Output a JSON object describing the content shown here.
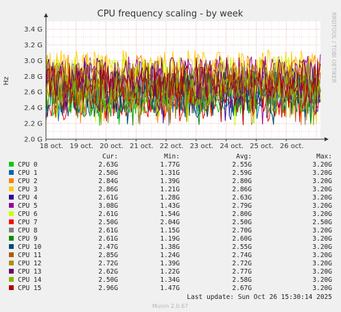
{
  "chart_data": {
    "type": "line",
    "title": "CPU frequency scaling - by week",
    "ylabel": "Hz",
    "xlabel": "",
    "ylim": [
      2.0,
      3.5
    ],
    "y_ticks": [
      2.0,
      2.2,
      2.4,
      2.6,
      2.8,
      3.0,
      3.2,
      3.4
    ],
    "y_tick_labels": [
      "2.0 G",
      "2.2 G",
      "2.4 G",
      "2.6 G",
      "2.8 G",
      "3.0 G",
      "3.2 G",
      "3.4 G"
    ],
    "x_tick_labels": [
      "18 oct.",
      "19 oct.",
      "20 oct.",
      "21 oct.",
      "22 oct.",
      "23 oct.",
      "24 oct.",
      "25 oct.",
      "26 oct."
    ],
    "grid": true,
    "legend_position": "bottom",
    "legend_headers": [
      "Cur:",
      "Min:",
      "Avg:",
      "Max:"
    ],
    "series": [
      {
        "name": "CPU 0",
        "color": "#00cc00",
        "cur": "2.63G",
        "min": "1.77G",
        "avg": "2.55G",
        "max": "3.20G"
      },
      {
        "name": "CPU 1",
        "color": "#0066b3",
        "cur": "2.50G",
        "min": "1.31G",
        "avg": "2.59G",
        "max": "3.20G"
      },
      {
        "name": "CPU 2",
        "color": "#ff8000",
        "cur": "2.84G",
        "min": "1.39G",
        "avg": "2.80G",
        "max": "3.20G"
      },
      {
        "name": "CPU 3",
        "color": "#ffcc00",
        "cur": "2.86G",
        "min": "1.21G",
        "avg": "2.86G",
        "max": "3.20G"
      },
      {
        "name": "CPU 4",
        "color": "#330099",
        "cur": "2.61G",
        "min": "1.28G",
        "avg": "2.63G",
        "max": "3.20G"
      },
      {
        "name": "CPU 5",
        "color": "#990099",
        "cur": "3.08G",
        "min": "1.43G",
        "avg": "2.79G",
        "max": "3.20G"
      },
      {
        "name": "CPU 6",
        "color": "#ccff00",
        "cur": "2.61G",
        "min": "1.54G",
        "avg": "2.80G",
        "max": "3.20G"
      },
      {
        "name": "CPU 7",
        "color": "#ff0000",
        "cur": "2.50G",
        "min": "2.04G",
        "avg": "2.50G",
        "max": "2.50G"
      },
      {
        "name": "CPU 8",
        "color": "#808080",
        "cur": "2.61G",
        "min": "1.15G",
        "avg": "2.70G",
        "max": "3.20G"
      },
      {
        "name": "CPU 9",
        "color": "#008f00",
        "cur": "2.61G",
        "min": "1.19G",
        "avg": "2.60G",
        "max": "3.20G"
      },
      {
        "name": "CPU 10",
        "color": "#00487d",
        "cur": "2.47G",
        "min": "1.38G",
        "avg": "2.55G",
        "max": "3.20G"
      },
      {
        "name": "CPU 11",
        "color": "#b35a00",
        "cur": "2.85G",
        "min": "1.24G",
        "avg": "2.74G",
        "max": "3.20G"
      },
      {
        "name": "CPU 12",
        "color": "#b38f00",
        "cur": "2.72G",
        "min": "1.39G",
        "avg": "2.72G",
        "max": "3.20G"
      },
      {
        "name": "CPU 13",
        "color": "#6b006b",
        "cur": "2.62G",
        "min": "1.22G",
        "avg": "2.77G",
        "max": "3.20G"
      },
      {
        "name": "CPU 14",
        "color": "#8fb300",
        "cur": "2.50G",
        "min": "1.34G",
        "avg": "2.58G",
        "max": "3.20G"
      },
      {
        "name": "CPU 15",
        "color": "#b30000",
        "cur": "2.96G",
        "min": "1.47G",
        "avg": "2.67G",
        "max": "3.20G"
      }
    ]
  },
  "side_label": "RRDTOOL / TOBI OETIKER",
  "last_update": "Last update: Sun Oct 26 15:30:14 2025",
  "footer": "Munin 2.0.67"
}
